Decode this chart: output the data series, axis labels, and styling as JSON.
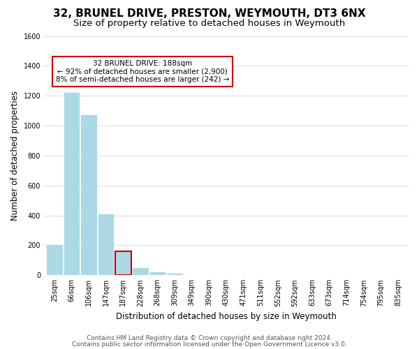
{
  "title": "32, BRUNEL DRIVE, PRESTON, WEYMOUTH, DT3 6NX",
  "subtitle": "Size of property relative to detached houses in Weymouth",
  "xlabel": "Distribution of detached houses by size in Weymouth",
  "ylabel": "Number of detached properties",
  "footer_lines": [
    "Contains HM Land Registry data © Crown copyright and database right 2024.",
    "Contains public sector information licensed under the Open Government Licence v3.0."
  ],
  "bin_labels": [
    "25sqm",
    "66sqm",
    "106sqm",
    "147sqm",
    "187sqm",
    "228sqm",
    "268sqm",
    "309sqm",
    "349sqm",
    "390sqm",
    "430sqm",
    "471sqm",
    "511sqm",
    "552sqm",
    "592sqm",
    "633sqm",
    "673sqm",
    "714sqm",
    "754sqm",
    "795sqm",
    "835sqm"
  ],
  "bar_heights": [
    205,
    1225,
    1075,
    410,
    160,
    52,
    25,
    15,
    0,
    0,
    0,
    0,
    0,
    0,
    0,
    0,
    0,
    0,
    0,
    0,
    0
  ],
  "bar_color": "#add8e6",
  "highlight_bar_index": 4,
  "highlight_edge_color": "#cc0000",
  "annotation_box_text": "32 BRUNEL DRIVE: 188sqm\n← 92% of detached houses are smaller (2,900)\n8% of semi-detached houses are larger (242) →",
  "annotation_box_edge_color": "#cc0000",
  "annotation_box_face_color": "#ffffff",
  "ylim": [
    0,
    1600
  ],
  "yticks": [
    0,
    200,
    400,
    600,
    800,
    1000,
    1200,
    1400,
    1600
  ],
  "fig_width": 6.0,
  "fig_height": 5.0,
  "dpi": 100,
  "background_color": "#ffffff",
  "grid_color": "#dddddd",
  "title_fontsize": 11,
  "subtitle_fontsize": 9.5,
  "axis_label_fontsize": 8.5,
  "tick_fontsize": 7,
  "annotation_fontsize": 7.5,
  "footer_fontsize": 6.5
}
